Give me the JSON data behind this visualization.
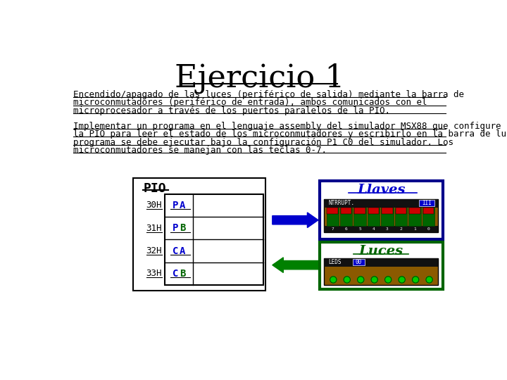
{
  "title": "Ejercicio 1",
  "bg_color": "#ffffff",
  "title_font": "serif",
  "title_fontsize": 32,
  "para1_lines": [
    "Encendido/apagado de las luces (periférico de salida) mediante la barra de",
    "microconmutadores (periférico de entrada), ambos comunicados con el",
    "microprocesador a través de los puertos paralelos de la PIO."
  ],
  "para2_lines": [
    "Implementar un programa en el lenguaje assembly del simulador MSX88 que configure",
    "la PIO para leer el estado de los microconmutadores y escribirlo en la barra de luces. El",
    "programa se debe ejecutar bajo la configuración P1 C0 del simulador. Los",
    "microconmutadores se manejan con las teclas 0-7."
  ],
  "pio_label": "PIO",
  "rows": [
    "30H",
    "31H",
    "32H",
    "33H"
  ],
  "row_labels": [
    "PA",
    "PB",
    "CA",
    "CB"
  ],
  "llaves_title": "Llaves",
  "luces_title": "Luces",
  "brown_color": "#8B5A00",
  "blue_border": "#00008B",
  "green_border": "#006400",
  "blue_arrow": "#0000CD",
  "green_arrow": "#008000",
  "led_green": "#00CC00",
  "switch_red": "#CC0000",
  "blue_text": "#0000CD",
  "green_text": "#006400",
  "black_text": "#000000",
  "dark_green_sw": "#006600",
  "blue_box_color": "#0000CC"
}
